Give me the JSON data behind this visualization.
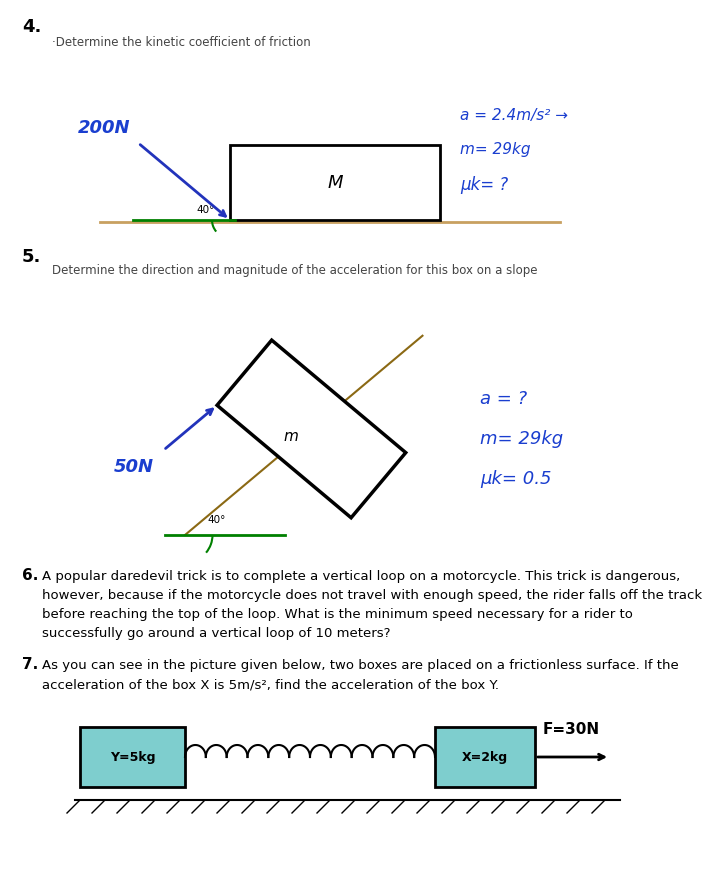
{
  "bg_color": "#ffffff",
  "q4_number": "4.",
  "q4_subtitle": "·Determine the kinetic coefficient of friction",
  "q4_label_200N": "200N",
  "q4_angle_label": "40°",
  "q4_box_label": "M",
  "q4_ann1": "a = 2.4m/s² →",
  "q4_ann2": "m= 29kg",
  "q4_ann3": "μk= ?",
  "q5_number": "5.",
  "q5_subtitle": "Determine the direction and magnitude of the acceleration for this box on a slope",
  "q5_label_50N": "50N",
  "q5_angle_label": "40°",
  "q5_box_label": "m",
  "q5_ann1": "a = ?",
  "q5_ann2": "m= 29kg",
  "q5_ann3": "μk= 0.5",
  "q6_number": "6.",
  "q6_text": "A popular daredevil trick is to complete a vertical loop on a motorcycle. This trick is dangerous,\nhowever, because if the motorcycle does not travel with enough speed, the rider falls off the track\nbefore reaching the top of the loop. What is the minimum speed necessary for a rider to\nsuccessfully go around a vertical loop of 10 meters?",
  "q7_number": "7.",
  "q7_text": "As you can see in the picture given below, two boxes are placed on a frictionless surface. If the\nacceleration of the box X is 5m/s², find the acceleration of the box Y.",
  "q7_label_Y": "Y=5kg",
  "q7_label_X": "X=2kg",
  "q7_force_label": "F=30N",
  "hw_color": "#1a3ecf",
  "diag_color": "#000000",
  "box7_color": "#7ecece",
  "ground4_color": "#c8a060",
  "slope_color": "#8b6914"
}
